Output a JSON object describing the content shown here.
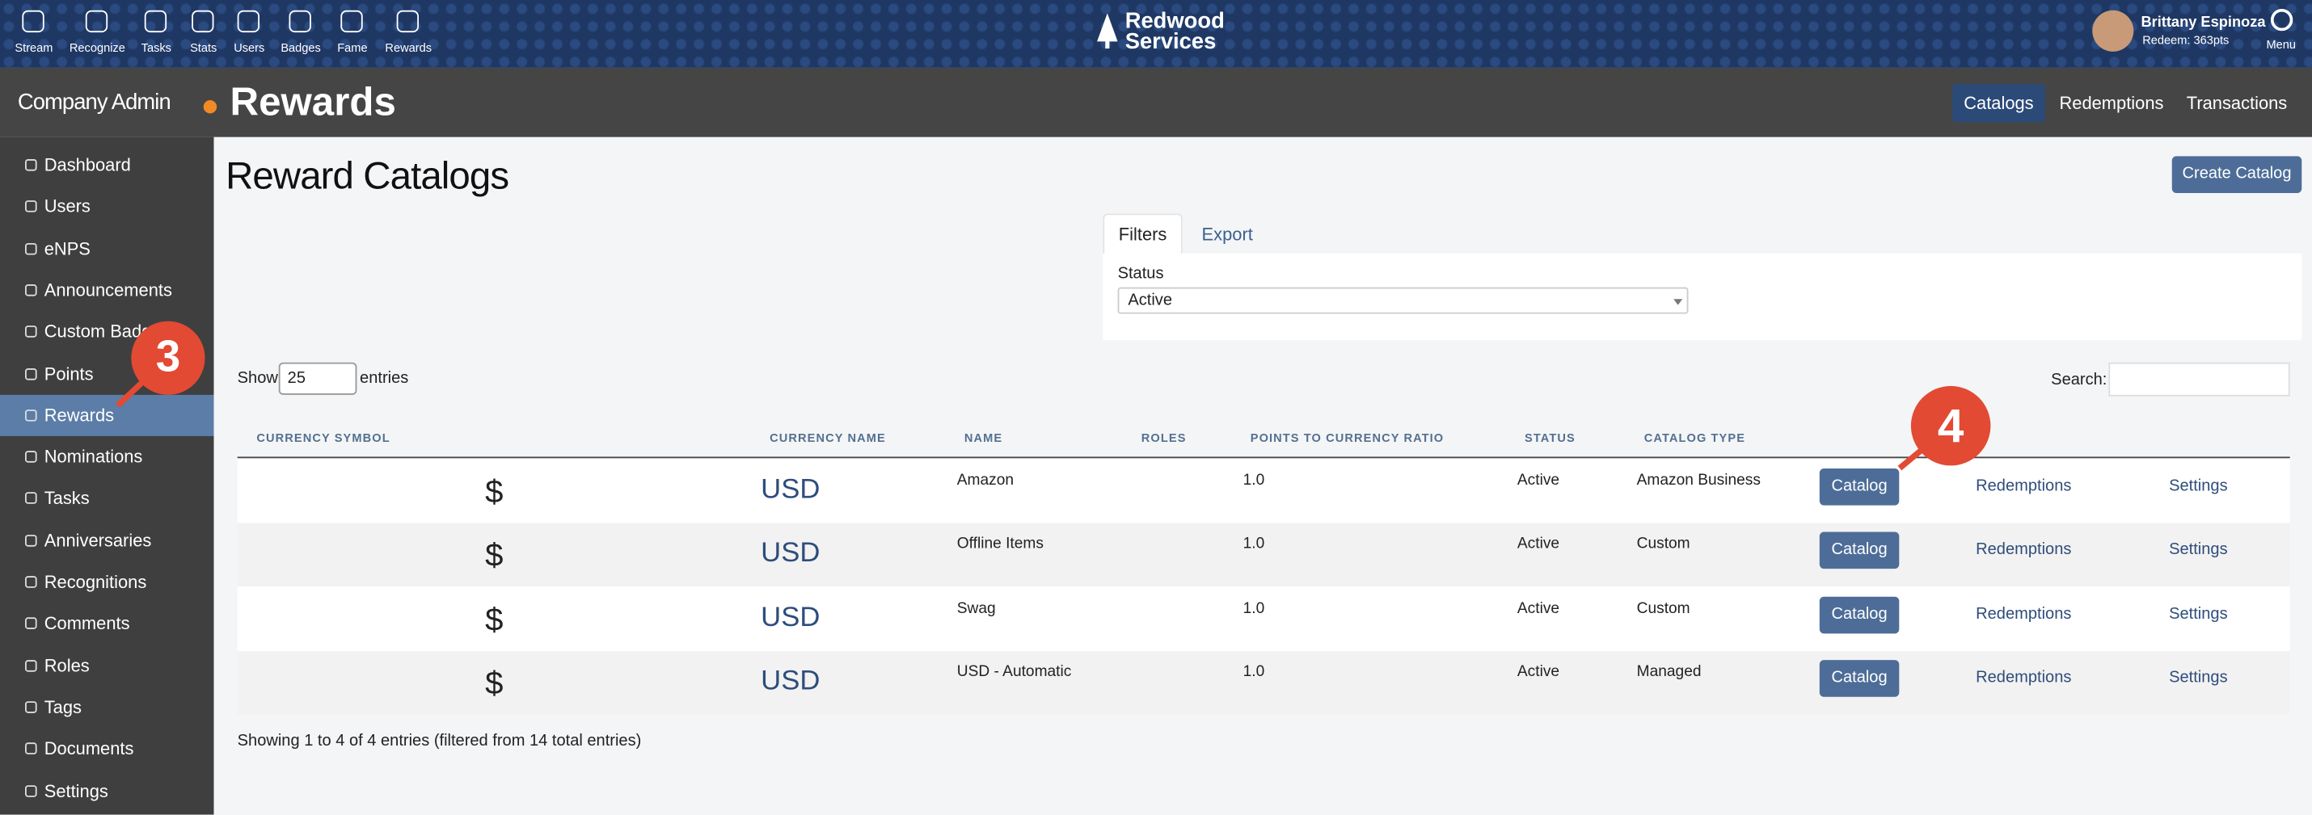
{
  "top_nav": {
    "items": [
      "Stream",
      "Recognize",
      "Tasks",
      "Stats",
      "Users",
      "Badges",
      "Fame",
      "Rewards"
    ],
    "brand": [
      "Redwood",
      "Services"
    ],
    "user_name": "Brittany Espinoza",
    "user_points": "Redeem: 363pts",
    "menu": "Menu"
  },
  "sidebar": {
    "title": "Company Admin",
    "items": [
      "Dashboard",
      "Users",
      "eNPS",
      "Announcements",
      "Custom Badges",
      "Points",
      "Rewards",
      "Nominations",
      "Tasks",
      "Anniversaries",
      "Recognitions",
      "Comments",
      "Roles",
      "Tags",
      "Documents",
      "Settings"
    ]
  },
  "header": {
    "title": "Rewards",
    "tabs": [
      "Catalogs",
      "Redemptions",
      "Transactions"
    ]
  },
  "content": {
    "title": "Reward Catalogs",
    "create_button": "Create Catalog",
    "filter_tabs": [
      "Filters",
      "Export"
    ],
    "status_label": "Status",
    "status_value": "Active",
    "show_label": "Show",
    "page_size": "25",
    "entries_label": "entries",
    "search_label": "Search:",
    "table": {
      "columns": [
        "CURRENCY SYMBOL",
        "CURRENCY NAME",
        "NAME",
        "ROLES",
        "POINTS TO CURRENCY RATIO",
        "STATUS",
        "CATALOG TYPE"
      ],
      "row_actions": [
        "Catalog",
        "Redemptions",
        "Settings"
      ],
      "rows": [
        {
          "symbol": "$",
          "currency": "USD",
          "name": "Amazon",
          "ratio": "1.0",
          "status": "Active",
          "type": "Amazon Business"
        },
        {
          "symbol": "$",
          "currency": "USD",
          "name": "Offline Items",
          "ratio": "1.0",
          "status": "Active",
          "type": "Custom"
        },
        {
          "symbol": "$",
          "currency": "USD",
          "name": "Swag",
          "ratio": "1.0",
          "status": "Active",
          "type": "Custom"
        },
        {
          "symbol": "$",
          "currency": "USD",
          "name": "USD - Automatic",
          "ratio": "1.0",
          "status": "Active",
          "type": "Managed"
        }
      ]
    },
    "footer": "Showing 1 to 4 of 4 entries (filtered from 14 total entries)"
  },
  "annotations": [
    "3",
    "4"
  ]
}
